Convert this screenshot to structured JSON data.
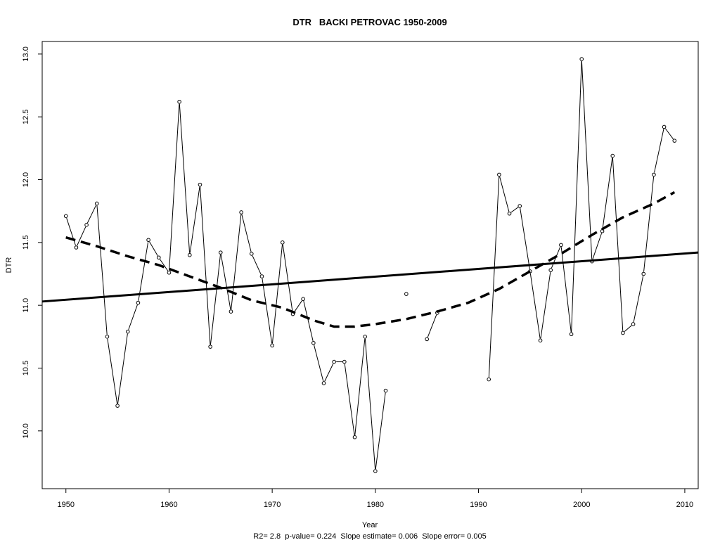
{
  "chart_data": {
    "type": "line",
    "title": "DTR   BACKI PETROVAC 1950-2009",
    "xlabel": "Year",
    "ylabel": "DTR",
    "footer": "R2= 2.8  p-value= 0.224  Slope estimate= 0.006  Slope error= 0.005",
    "xlim": [
      1947.7,
      2011.3
    ],
    "ylim": [
      9.54,
      13.1
    ],
    "x_ticks": [
      1950,
      1960,
      1970,
      1980,
      1990,
      2000,
      2010
    ],
    "y_ticks": [
      10.0,
      10.5,
      11.0,
      11.5,
      12.0,
      12.5,
      13.0
    ],
    "grid": false,
    "series": [
      {
        "style": "solid-thin-with-points",
        "x": [
          1950,
          1951,
          1952,
          1953,
          1954,
          1955,
          1956,
          1957,
          1958,
          1959,
          1960,
          1961,
          1962,
          1963,
          1964,
          1965,
          1966,
          1967,
          1968,
          1969,
          1970,
          1971,
          1972,
          1973,
          1974,
          1975,
          1976,
          1977,
          1978,
          1979,
          1980,
          1981,
          1982,
          1983,
          1984,
          1985,
          1986,
          1987,
          1988,
          1989,
          1990,
          1991,
          1992,
          1993,
          1994,
          1995,
          1996,
          1997,
          1998,
          1999,
          2000,
          2001,
          2002,
          2003,
          2004,
          2005,
          2006,
          2007,
          2008,
          2009
        ],
        "y": [
          11.71,
          11.46,
          11.64,
          11.81,
          10.75,
          10.2,
          10.79,
          11.02,
          11.52,
          11.38,
          11.26,
          12.62,
          11.4,
          11.96,
          10.67,
          11.42,
          10.95,
          11.74,
          11.41,
          11.23,
          10.68,
          11.5,
          10.93,
          11.05,
          10.7,
          10.38,
          10.55,
          10.55,
          9.95,
          10.75,
          9.68,
          10.32,
          null,
          11.09,
          null,
          10.73,
          10.94,
          null,
          null,
          null,
          null,
          10.41,
          12.04,
          11.73,
          11.79,
          11.27,
          10.72,
          11.28,
          11.48,
          10.77,
          12.96,
          11.35,
          11.59,
          12.19,
          10.78,
          10.85,
          11.25,
          12.04,
          12.42,
          12.31
        ]
      },
      {
        "style": "solid-thick-linear-trend",
        "x": [
          1947.7,
          2011.3
        ],
        "y": [
          11.03,
          11.42
        ]
      },
      {
        "style": "dashed-thick-smooth",
        "x": [
          1950,
          1953,
          1956,
          1959,
          1962,
          1965,
          1968,
          1971,
          1974,
          1976,
          1978,
          1980,
          1983,
          1986,
          1989,
          1992,
          1995,
          1998,
          2001,
          2004,
          2007,
          2009
        ],
        "y": [
          11.54,
          11.47,
          11.39,
          11.32,
          11.23,
          11.14,
          11.04,
          10.98,
          10.88,
          10.83,
          10.83,
          10.85,
          10.89,
          10.95,
          11.02,
          11.13,
          11.27,
          11.41,
          11.56,
          11.7,
          11.81,
          11.9
        ]
      }
    ]
  }
}
